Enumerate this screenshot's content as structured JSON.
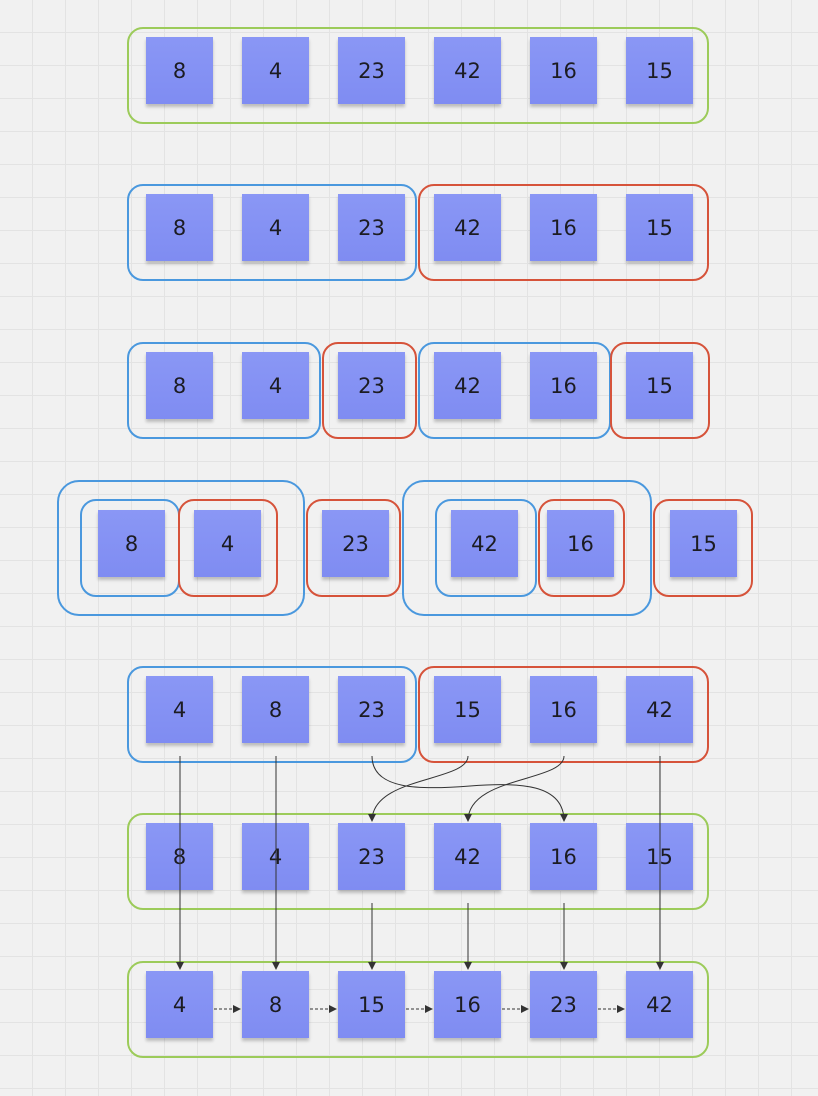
{
  "rows": [
    {
      "stage": "original",
      "notes": [
        "8",
        "4",
        "23",
        "42",
        "16",
        "15"
      ]
    },
    {
      "stage": "split-1",
      "notes": [
        "8",
        "4",
        "23",
        "42",
        "16",
        "15"
      ]
    },
    {
      "stage": "split-2",
      "notes": [
        "8",
        "4",
        "23",
        "42",
        "16",
        "15"
      ]
    },
    {
      "stage": "split-3",
      "notes": [
        "8",
        "4",
        "23",
        "42",
        "16",
        "15"
      ]
    },
    {
      "stage": "merge-1",
      "notes": [
        "4",
        "8",
        "23",
        "15",
        "16",
        "42"
      ]
    },
    {
      "stage": "merge-2",
      "notes": [
        "8",
        "4",
        "23",
        "42",
        "16",
        "15"
      ]
    },
    {
      "stage": "sorted",
      "notes": [
        "4",
        "8",
        "15",
        "16",
        "23",
        "42"
      ]
    }
  ],
  "colors": {
    "note_fill": "#8491f4",
    "frame_green": "#9ccb5a",
    "frame_blue": "#4a98de",
    "frame_red": "#d6533a",
    "arrow": "#333333"
  }
}
